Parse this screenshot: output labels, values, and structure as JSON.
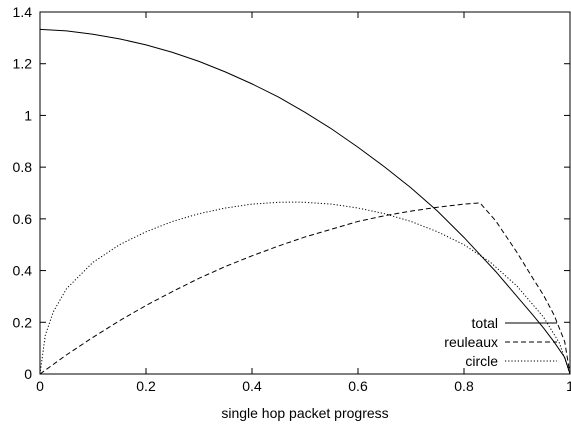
{
  "chart_data": {
    "type": "line",
    "xlabel": "single hop packet progress",
    "ylabel": "",
    "xlim": [
      0,
      1
    ],
    "ylim": [
      0,
      1.4
    ],
    "x_ticks": [
      "0",
      "0.2",
      "0.4",
      "0.6",
      "0.8",
      "1"
    ],
    "y_ticks": [
      "0",
      "0.2",
      "0.4",
      "0.6",
      "0.8",
      "1",
      "1.2",
      "1.4"
    ],
    "grid": false,
    "legend_position": "bottom-right",
    "series": [
      {
        "name": "total",
        "style": "solid",
        "color": "#000000",
        "x": [
          0,
          0.05,
          0.1,
          0.15,
          0.2,
          0.25,
          0.3,
          0.35,
          0.4,
          0.45,
          0.5,
          0.55,
          0.6,
          0.65,
          0.7,
          0.75,
          0.8,
          0.83,
          0.86,
          0.9,
          0.93,
          0.95,
          0.97,
          0.99,
          1.0
        ],
        "y": [
          1.333,
          1.327,
          1.314,
          1.296,
          1.273,
          1.244,
          1.209,
          1.168,
          1.122,
          1.071,
          1.012,
          0.948,
          0.877,
          0.801,
          0.72,
          0.63,
          0.528,
          0.462,
          0.396,
          0.3,
          0.228,
          0.178,
          0.124,
          0.064,
          0.0
        ]
      },
      {
        "name": "reuleaux",
        "style": "dashed",
        "color": "#000000",
        "x": [
          0,
          0.05,
          0.1,
          0.15,
          0.2,
          0.25,
          0.3,
          0.35,
          0.4,
          0.45,
          0.5,
          0.55,
          0.6,
          0.65,
          0.7,
          0.75,
          0.8,
          0.83,
          0.86,
          0.9,
          0.93,
          0.95,
          0.97,
          0.99,
          1.0
        ],
        "y": [
          0.0,
          0.074,
          0.142,
          0.206,
          0.265,
          0.319,
          0.37,
          0.416,
          0.457,
          0.495,
          0.53,
          0.56,
          0.59,
          0.612,
          0.63,
          0.645,
          0.657,
          0.662,
          0.592,
          0.47,
          0.37,
          0.305,
          0.228,
          0.125,
          0.0
        ]
      },
      {
        "name": "circle",
        "style": "dotted",
        "color": "#000000",
        "x": [
          0,
          0.01,
          0.025,
          0.05,
          0.1,
          0.15,
          0.2,
          0.25,
          0.3,
          0.35,
          0.4,
          0.45,
          0.48,
          0.5,
          0.55,
          0.6,
          0.65,
          0.7,
          0.75,
          0.8,
          0.85,
          0.9,
          0.95,
          0.98,
          1.0
        ],
        "y": [
          0.0,
          0.15,
          0.24,
          0.33,
          0.432,
          0.5,
          0.55,
          0.59,
          0.62,
          0.642,
          0.657,
          0.664,
          0.665,
          0.664,
          0.657,
          0.642,
          0.62,
          0.59,
          0.55,
          0.5,
          0.432,
          0.34,
          0.22,
          0.12,
          0.0
        ]
      }
    ]
  }
}
